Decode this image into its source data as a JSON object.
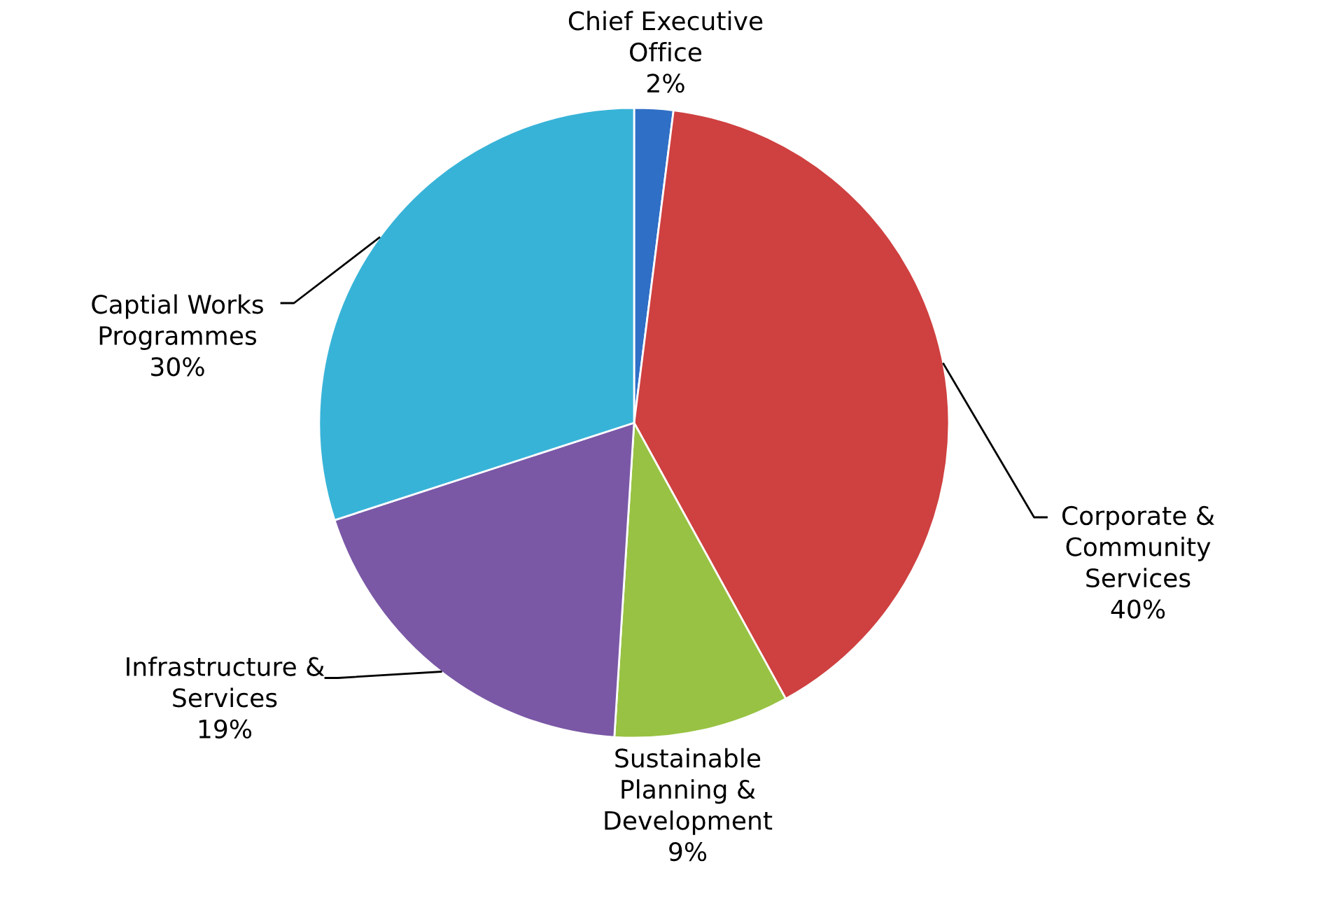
{
  "chart_data": {
    "type": "pie",
    "categories": [
      "Chief Executive\nOffice",
      "Corporate &\nCommunity\nServices",
      "Sustainable\nPlanning &\nDevelopment",
      "Infrastructure &\nServices",
      "Captial Works\nProgrammes"
    ],
    "values": [
      2,
      40,
      9,
      19,
      30
    ],
    "value_labels": [
      "2%",
      "40%",
      "9%",
      "19%",
      "30%"
    ],
    "colors": [
      "#2f6fc6",
      "#cf4040",
      "#98c243",
      "#7a58a6",
      "#38b3d8"
    ],
    "legend": false
  }
}
